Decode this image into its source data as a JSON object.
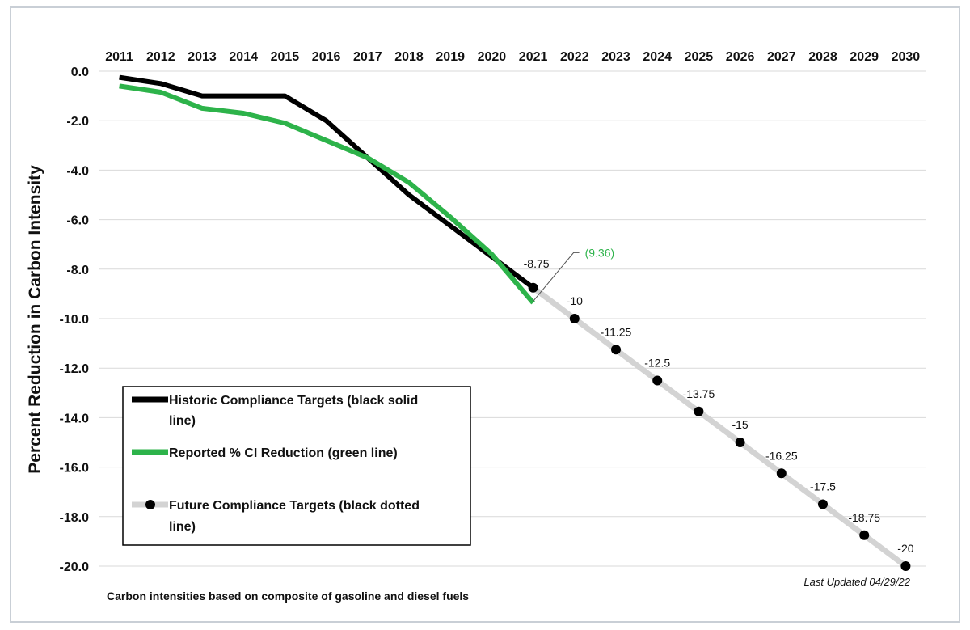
{
  "chart_data": {
    "type": "line",
    "ylabel": "Percent Reduction in Carbon Intensity",
    "xlabel": "",
    "x": [
      2011,
      2012,
      2013,
      2014,
      2015,
      2016,
      2017,
      2018,
      2019,
      2020,
      2021,
      2022,
      2023,
      2024,
      2025,
      2026,
      2027,
      2028,
      2029,
      2030
    ],
    "x_tick_labels": [
      "2011",
      "2012",
      "2013",
      "2014",
      "2015",
      "2016",
      "2017",
      "2018",
      "2019",
      "2020",
      "2021",
      "2022",
      "2023",
      "2024",
      "2025",
      "2026",
      "2027",
      "2028",
      "2029",
      "2030"
    ],
    "x_axis_position": "top",
    "ylim": [
      -20,
      0
    ],
    "y_ticks": [
      0,
      -2,
      -4,
      -6,
      -8,
      -10,
      -12,
      -14,
      -16,
      -18,
      -20
    ],
    "y_tick_labels": [
      "0.0",
      "-2.0",
      "-4.0",
      "-6.0",
      "-8.0",
      "-10.0",
      "-12.0",
      "-14.0",
      "-16.0",
      "-18.0",
      "-20.0"
    ],
    "grid": "horizontal",
    "series": [
      {
        "name": "Historic Compliance Targets (black solid line)",
        "color": "#000000",
        "style": "solid",
        "x": [
          2011,
          2012,
          2013,
          2014,
          2015,
          2016,
          2017,
          2018,
          2019,
          2020,
          2021
        ],
        "values": [
          -0.25,
          -0.5,
          -1.0,
          -1.0,
          -1.0,
          -2.0,
          -3.5,
          -5.0,
          -6.25,
          -7.5,
          -8.75
        ]
      },
      {
        "name": "Reported % CI Reduction (green line)",
        "color": "#2db34a",
        "style": "solid",
        "x": [
          2011,
          2012,
          2013,
          2014,
          2015,
          2016,
          2017,
          2018,
          2019,
          2020,
          2021
        ],
        "values": [
          -0.6,
          -0.85,
          -1.5,
          -1.7,
          -2.1,
          -2.8,
          -3.5,
          -4.5,
          -5.9,
          -7.4,
          -9.36
        ]
      },
      {
        "name": "Future Compliance Targets (black dotted line)",
        "color": "#d3d3d3",
        "marker_color": "#000000",
        "style": "dotted",
        "x": [
          2021,
          2022,
          2023,
          2024,
          2025,
          2026,
          2027,
          2028,
          2029,
          2030
        ],
        "values": [
          -8.75,
          -10,
          -11.25,
          -12.5,
          -13.75,
          -15,
          -16.25,
          -17.5,
          -18.75,
          -20
        ]
      }
    ],
    "data_labels": [
      {
        "x": 2021,
        "y": -8.75,
        "text": "-8.75"
      },
      {
        "x": 2022,
        "y": -10,
        "text": "-10"
      },
      {
        "x": 2023,
        "y": -11.25,
        "text": "-11.25"
      },
      {
        "x": 2024,
        "y": -12.5,
        "text": "-12.5"
      },
      {
        "x": 2025,
        "y": -13.75,
        "text": "-13.75"
      },
      {
        "x": 2026,
        "y": -15,
        "text": "-15"
      },
      {
        "x": 2027,
        "y": -16.25,
        "text": "-16.25"
      },
      {
        "x": 2028,
        "y": -17.5,
        "text": "-17.5"
      },
      {
        "x": 2029,
        "y": -18.75,
        "text": "-18.75"
      },
      {
        "x": 2030,
        "y": -20,
        "text": "-20"
      }
    ],
    "callout": {
      "x": 2021,
      "y": -9.36,
      "text": "(9.36)",
      "color": "#2db34a"
    },
    "legend": {
      "placement": "bottom-left",
      "items": [
        {
          "line1": "Historic Compliance Targets (black solid",
          "line2": "line)",
          "color": "#000000",
          "marker": false
        },
        {
          "line1": "Reported % CI Reduction (green line)",
          "line2": "",
          "color": "#2db34a",
          "marker": false
        },
        {
          "line1": "Future Compliance Targets (black dotted",
          "line2": "line)",
          "color": "#d3d3d3",
          "marker": true
        }
      ]
    },
    "footnote": "Carbon intensities based on composite of gasoline and diesel fuels",
    "last_updated": "Last Updated 04/29/22"
  }
}
